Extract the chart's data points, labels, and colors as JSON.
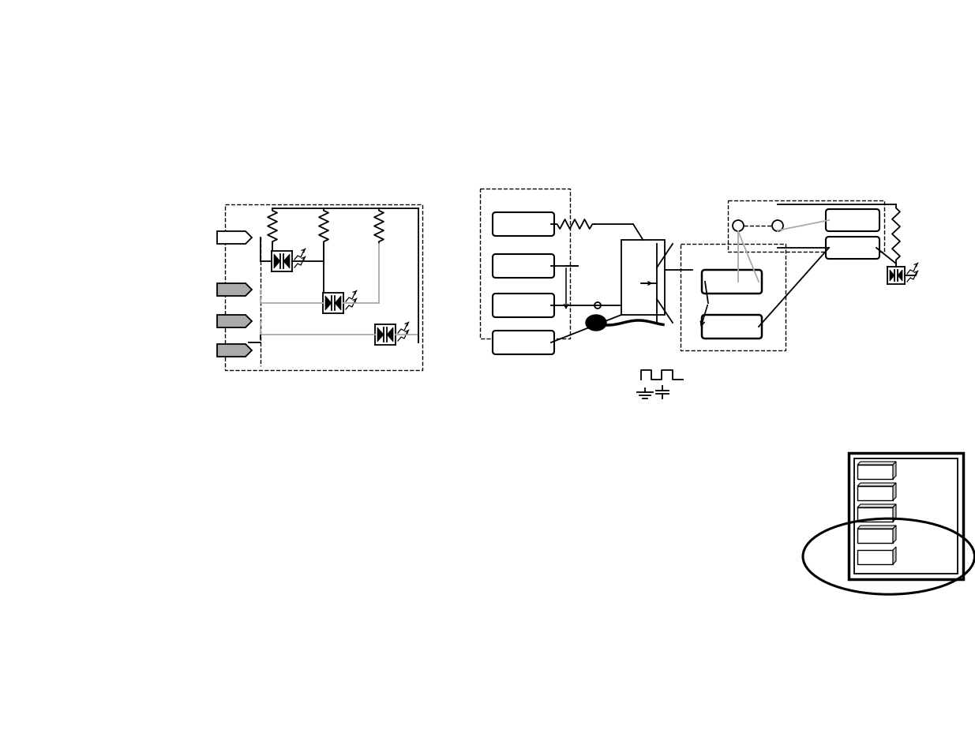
{
  "bg_color": "#ffffff",
  "figsize": [
    12.35,
    9.54
  ],
  "dpi": 100
}
